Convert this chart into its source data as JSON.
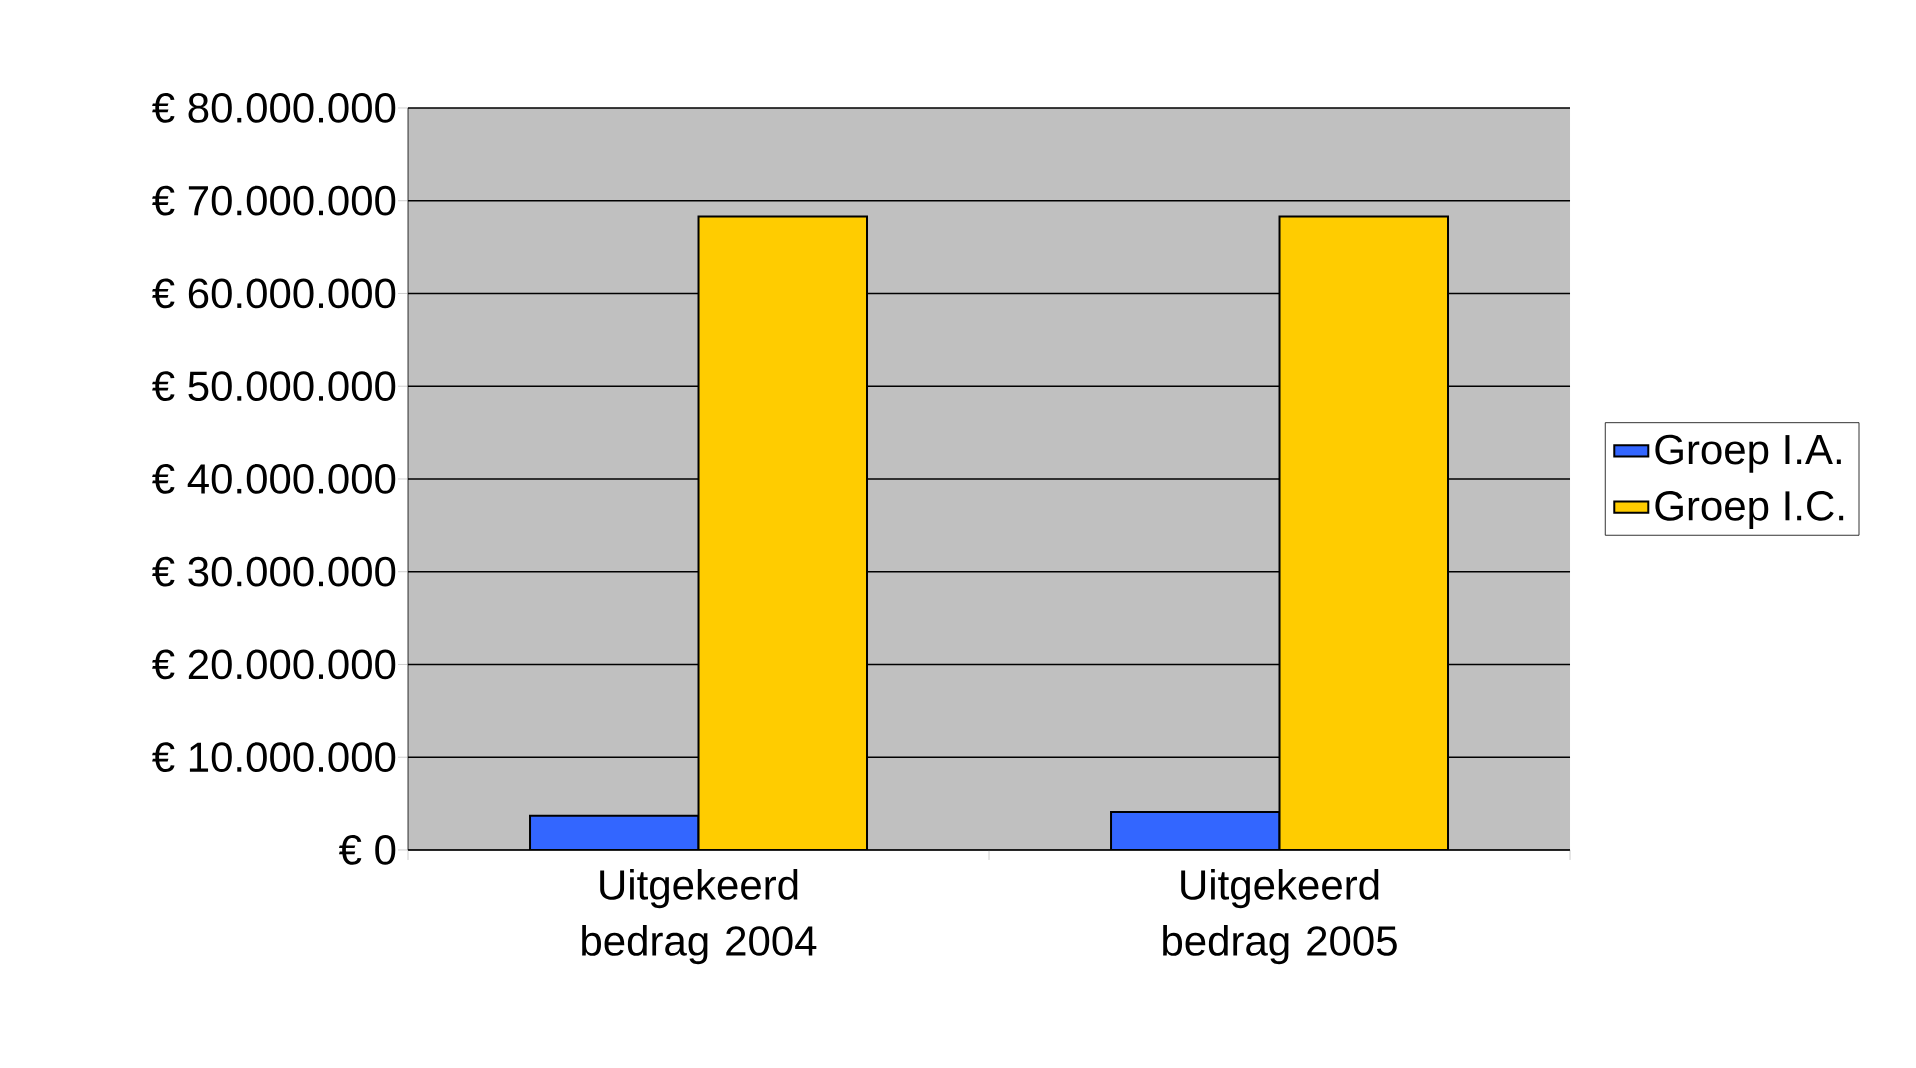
{
  "chart_data": {
    "type": "bar",
    "categories": [
      "Uitgekeerd bedrag 2004",
      "Uitgekeerd bedrag 2005"
    ],
    "series": [
      {
        "name": "Groep I.A.",
        "color": "#3366ff",
        "values": [
          3700000,
          4100000
        ]
      },
      {
        "name": "Groep I.C.",
        "color": "#ffcc00",
        "values": [
          68300000,
          68300000
        ]
      }
    ],
    "ylim": [
      0,
      80000000
    ],
    "yticks": [
      {
        "value": 0,
        "label": "€ 0"
      },
      {
        "value": 10000000,
        "label": "€ 10.000.000"
      },
      {
        "value": 20000000,
        "label": "€ 20.000.000"
      },
      {
        "value": 30000000,
        "label": "€ 30.000.000"
      },
      {
        "value": 40000000,
        "label": "€ 40.000.000"
      },
      {
        "value": 50000000,
        "label": "€ 50.000.000"
      },
      {
        "value": 60000000,
        "label": "€ 60.000.000"
      },
      {
        "value": 70000000,
        "label": "€ 70.000.000"
      },
      {
        "value": 80000000,
        "label": "€ 80.000.000"
      }
    ],
    "grid": "y",
    "legend": "right"
  }
}
